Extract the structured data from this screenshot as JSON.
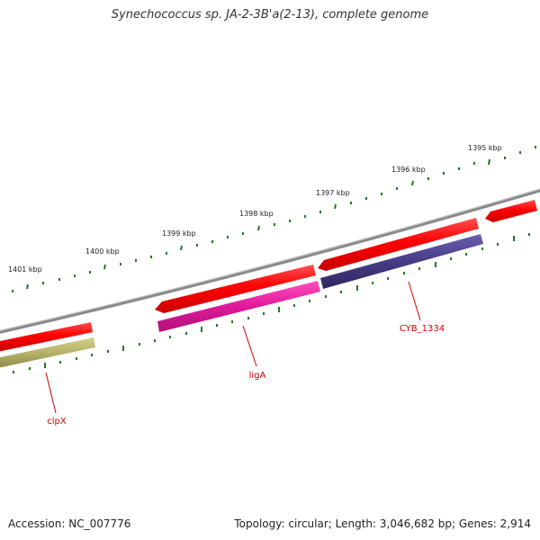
{
  "title": "Synechococcus sp. JA-2-3B'a(2-13), complete genome",
  "footer": {
    "accession": "Accession: NC_007776",
    "summary": "Topology: circular; Length: 3,046,682 bp; Genes: 2,914"
  },
  "scale_labels": [
    "1401 kbp",
    "1400 kbp",
    "1399 kbp",
    "1398 kbp",
    "1397 kbp",
    "1396 kbp",
    "1395 kbp"
  ],
  "genes": [
    {
      "name": "clpX",
      "strand": "reverse",
      "color": "#b5b268"
    },
    {
      "name": "ligA",
      "strand": "reverse",
      "color": "#e0199a"
    },
    {
      "name": "CYB_1334",
      "strand": "reverse",
      "color": "#463c85"
    }
  ],
  "forward_features": {
    "color": "#ff0000",
    "count": 4
  },
  "colors": {
    "backbone": "#8a8a8a",
    "ticks": "#1f7a1f",
    "gene_label": "#cc0000",
    "forward": "#ff0000"
  }
}
